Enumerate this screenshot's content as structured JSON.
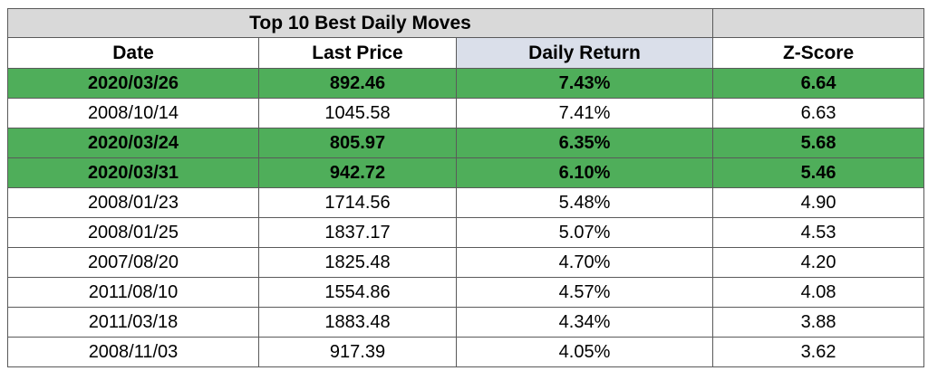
{
  "table": {
    "title": "Top 10 Best Daily Moves",
    "headers": [
      "Date",
      "Last Price",
      "Daily Return",
      "Z-Score"
    ],
    "rows": [
      {
        "date": "2020/03/26",
        "price": "892.46",
        "ret": "7.43%",
        "z": "6.64",
        "highlight": true
      },
      {
        "date": "2008/10/14",
        "price": "1045.58",
        "ret": "7.41%",
        "z": "6.63",
        "highlight": false
      },
      {
        "date": "2020/03/24",
        "price": "805.97",
        "ret": "6.35%",
        "z": "5.68",
        "highlight": true
      },
      {
        "date": "2020/03/31",
        "price": "942.72",
        "ret": "6.10%",
        "z": "5.46",
        "highlight": true
      },
      {
        "date": "2008/01/23",
        "price": "1714.56",
        "ret": "5.48%",
        "z": "4.90",
        "highlight": false
      },
      {
        "date": "2008/01/25",
        "price": "1837.17",
        "ret": "5.07%",
        "z": "4.53",
        "highlight": false
      },
      {
        "date": "2007/08/20",
        "price": "1825.48",
        "ret": "4.70%",
        "z": "4.20",
        "highlight": false
      },
      {
        "date": "2011/08/10",
        "price": "1554.86",
        "ret": "4.57%",
        "z": "4.08",
        "highlight": false
      },
      {
        "date": "2011/03/18",
        "price": "1883.48",
        "ret": "4.34%",
        "z": "3.88",
        "highlight": false
      },
      {
        "date": "2008/11/03",
        "price": "917.39",
        "ret": "4.05%",
        "z": "3.62",
        "highlight": false
      }
    ]
  },
  "colors": {
    "title_bg": "#d9d9d9",
    "highlight_row": "#4fae5a",
    "daily_return_header_bg": "#dadfea",
    "border": "#5a5a5a"
  }
}
